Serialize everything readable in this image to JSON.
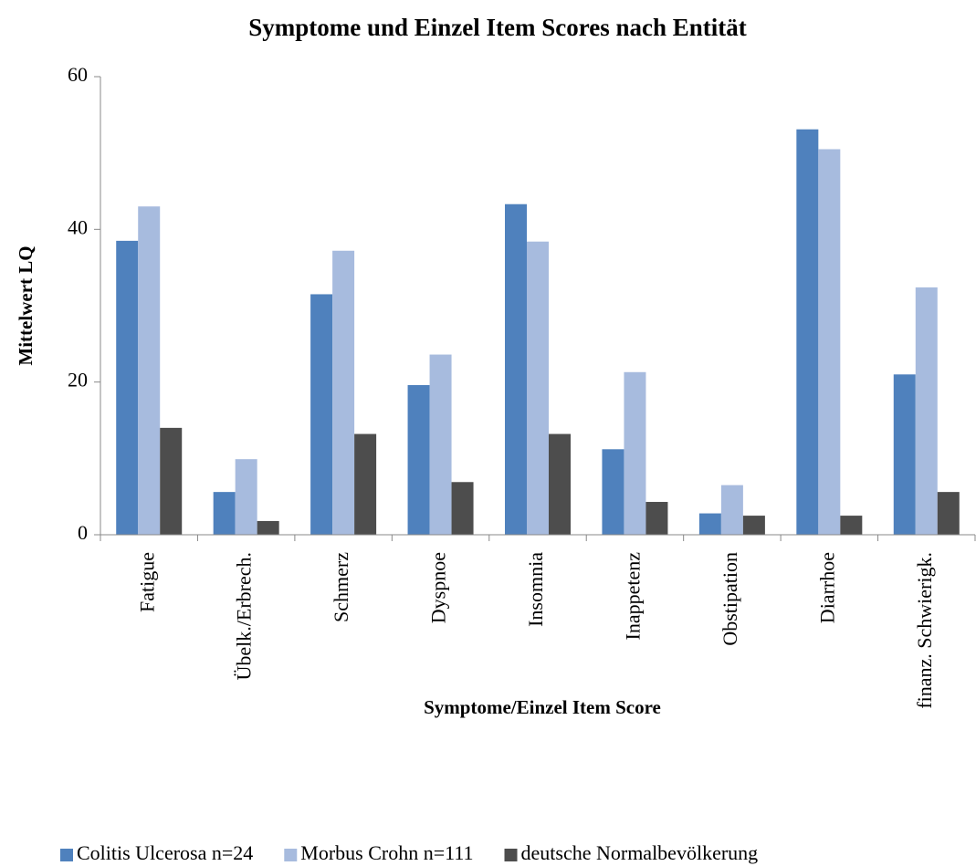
{
  "chart_data": {
    "type": "bar",
    "title": "Symptome und Einzel Item Scores nach Entität",
    "x_label": "Symptome/Einzel Item Score",
    "y_label": "Mittelwert LQ",
    "categories": [
      "Fatigue",
      "Übelk./Erbrech.",
      "Schmerz",
      "Dyspnoe",
      "Insomnia",
      "Inappetenz",
      "Obstipation",
      "Diarrhoe",
      "finanz. Schwierigk."
    ],
    "series": [
      {
        "name": "Colitis Ulcerosa n=24",
        "color": "#4f81bd",
        "values": [
          38.5,
          5.6,
          31.5,
          19.6,
          43.3,
          11.2,
          2.8,
          53.1,
          21.0
        ]
      },
      {
        "name": "Morbus Crohn n=111",
        "color": "#a7bbde",
        "values": [
          43.0,
          9.9,
          37.2,
          23.6,
          38.4,
          21.3,
          6.5,
          50.5,
          32.4
        ]
      },
      {
        "name": "deutsche Normalbevölkerung",
        "color": "#4d4d4d",
        "values": [
          14.0,
          1.8,
          13.2,
          6.9,
          13.2,
          4.3,
          2.5,
          2.5,
          5.6
        ]
      }
    ],
    "ylim": [
      0,
      60
    ],
    "yticks": [
      0,
      20,
      40,
      60
    ],
    "grid": false,
    "legend": "bottom"
  }
}
